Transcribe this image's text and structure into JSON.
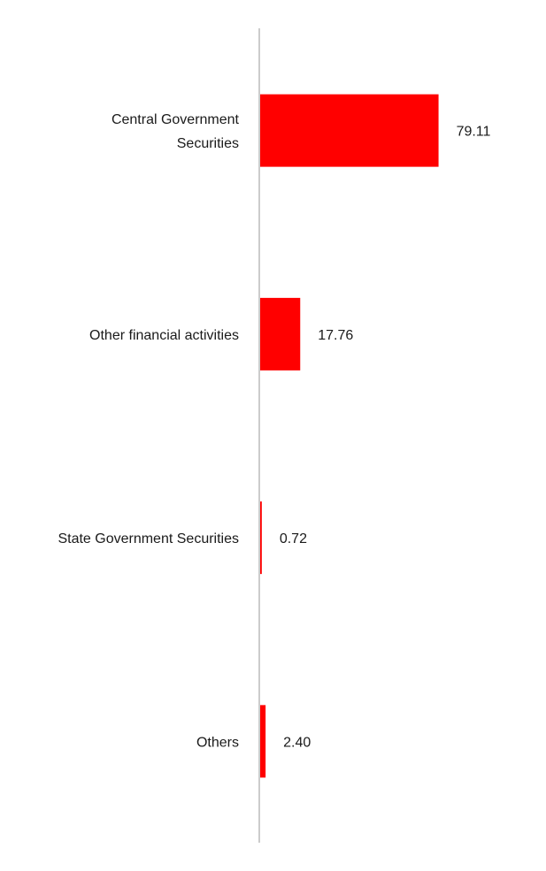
{
  "colors": {
    "bar": "#ff0000",
    "axis": "#cccccc",
    "text": "#1a1a1a",
    "background": "#ffffff"
  },
  "chart_data": {
    "type": "bar",
    "orientation": "horizontal",
    "title": "",
    "xlabel": "",
    "ylabel": "",
    "grid": false,
    "legend": "none",
    "xlim": [
      0,
      100
    ],
    "categories": [
      "Central Government Securities",
      "Other financial activities",
      "State Government Securities",
      "Others"
    ],
    "values": [
      79.11,
      17.76,
      0.72,
      2.4
    ],
    "value_labels": [
      "79.11",
      "17.76",
      "0.72",
      "2.40"
    ]
  }
}
